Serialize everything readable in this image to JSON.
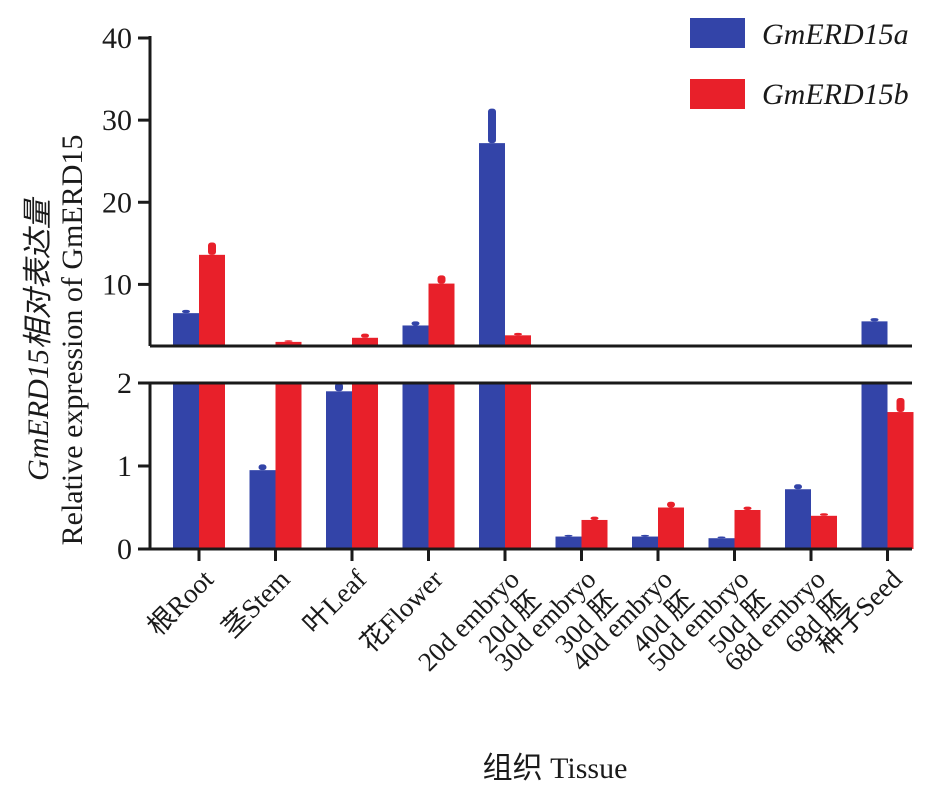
{
  "chart_data": {
    "type": "bar",
    "categories": [
      [
        "根Root"
      ],
      [
        "茎Stem"
      ],
      [
        "叶Leaf"
      ],
      [
        "花Flower"
      ],
      [
        "20d 胚",
        "20d embryo"
      ],
      [
        "30d 胚",
        "30d embryo"
      ],
      [
        "40d 胚",
        "40d embryo"
      ],
      [
        "50d 胚",
        "50d embryo"
      ],
      [
        "68d 胚",
        "68d embryo"
      ],
      [
        "种子Seed"
      ]
    ],
    "series": [
      {
        "name": "GmERD15a",
        "color": "#3344a8",
        "values": [
          6.5,
          0.95,
          1.9,
          5.0,
          27.2,
          0.15,
          0.15,
          0.13,
          0.72,
          5.5
        ],
        "errors": [
          0.4,
          0.07,
          0.1,
          0.5,
          4.2,
          0.02,
          0.02,
          0.02,
          0.06,
          0.4
        ]
      },
      {
        "name": "GmERD15b",
        "color": "#e8202a",
        "values": [
          13.6,
          3.0,
          3.5,
          10.1,
          3.8,
          0.35,
          0.5,
          0.47,
          0.4,
          1.65
        ],
        "errors": [
          1.5,
          0.2,
          0.5,
          1.0,
          0.3,
          0.04,
          0.07,
          0.04,
          0.03,
          0.17
        ]
      }
    ],
    "ylabel": [
      "GmERD15相对表达量",
      "Relative expression of GmERD15"
    ],
    "xlabel": "组织 Tissue",
    "y_axis_break": true,
    "y_segments": [
      {
        "range": [
          0,
          2
        ],
        "ticks": [
          "0",
          "1",
          "2"
        ]
      },
      {
        "range": [
          2.5,
          40
        ],
        "ticks": [
          "10",
          "20",
          "30",
          "40"
        ]
      }
    ],
    "legend_position": "top-right",
    "grid": false
  }
}
